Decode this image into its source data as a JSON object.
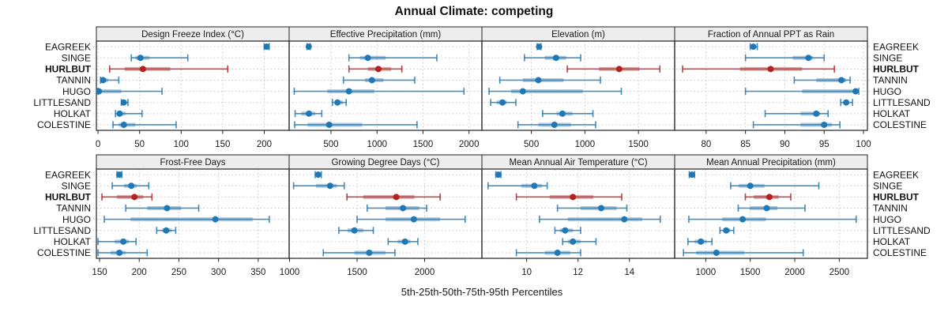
{
  "title": "Annual Climate: competing",
  "caption": "5th-25th-50th-75th-95th Percentiles",
  "colors": {
    "series_blue": "#1f77b4",
    "highlight_red": "#b22222",
    "strip_bg": "#ededed",
    "grid": "#c8c8c8",
    "border": "#222222",
    "text": "#1a1a1a"
  },
  "chart_data": {
    "type": "dotplot-percentile-trellis",
    "percentiles": [
      "5th",
      "25th",
      "50th",
      "75th",
      "95th"
    ],
    "sites": [
      "EAGREEK",
      "SINGE",
      "HURLBUT",
      "TANNIN",
      "HUGO",
      "LITTLESAND",
      "HOLKAT",
      "COLESTINE"
    ],
    "highlight_site": "HURLBUT",
    "layout_rows": 2,
    "layout_cols": 4,
    "grid": "dotted",
    "panels": [
      {
        "id": "design-freeze-index",
        "title": "Design Freeze Index (°C)",
        "xlim": [
          -2,
          230
        ],
        "ticks": [
          0,
          50,
          100,
          150,
          200
        ],
        "values": {
          "EAGREEK": [
            200,
            202,
            203,
            204,
            206
          ],
          "SINGE": [
            40,
            45,
            51,
            62,
            108
          ],
          "HURLBUT": [
            14,
            32,
            54,
            87,
            156
          ],
          "TANNIN": [
            3,
            4,
            6,
            12,
            25
          ],
          "HUGO": [
            0,
            0,
            1,
            28,
            77
          ],
          "LITTLESAND": [
            28,
            30,
            31,
            33,
            36
          ],
          "HOLKAT": [
            21,
            23,
            26,
            33,
            53
          ],
          "COLESTINE": [
            18,
            25,
            31,
            45,
            94
          ]
        }
      },
      {
        "id": "effective-precipitation",
        "title": "Effective Precipitation (mm)",
        "xlim": [
          45,
          2140
        ],
        "ticks": [
          500,
          1000,
          1500,
          2000
        ],
        "values": {
          "EAGREEK": [
            240,
            252,
            258,
            265,
            275
          ],
          "SINGE": [
            695,
            815,
            900,
            1095,
            1650
          ],
          "HURLBUT": [
            695,
            900,
            1015,
            1155,
            1270
          ],
          "TANNIN": [
            635,
            870,
            945,
            1070,
            1410
          ],
          "HUGO": [
            100,
            460,
            695,
            970,
            1945
          ],
          "LITTLESAND": [
            515,
            545,
            570,
            630,
            665
          ],
          "HOLKAT": [
            110,
            175,
            260,
            330,
            400
          ],
          "COLESTINE": [
            105,
            245,
            480,
            840,
            1435
          ]
        }
      },
      {
        "id": "elevation",
        "title": "Elevation (m)",
        "xlim": [
          38,
          1838
        ],
        "ticks": [
          500,
          1000,
          1500
        ],
        "values": {
          "EAGREEK": [
            555,
            565,
            572,
            580,
            590
          ],
          "SINGE": [
            435,
            625,
            730,
            825,
            960
          ],
          "HURLBUT": [
            835,
            1130,
            1320,
            1510,
            1700
          ],
          "TANNIN": [
            205,
            420,
            565,
            800,
            1145
          ],
          "HUGO": [
            105,
            310,
            420,
            980,
            1340
          ],
          "LITTLESAND": [
            120,
            175,
            230,
            270,
            355
          ],
          "HOLKAT": [
            605,
            735,
            790,
            885,
            1075
          ],
          "COLESTINE": [
            375,
            565,
            715,
            870,
            1100
          ]
        }
      },
      {
        "id": "fraction-ppt-as-rain",
        "title": "Fraction of Annual PPT as Rain",
        "xlim": [
          76,
          100.5
        ],
        "ticks": [
          80,
          85,
          90,
          95,
          100
        ],
        "values": {
          "EAGREEK": [
            85.6,
            85.8,
            86,
            86.2,
            86.5
          ],
          "SINGE": [
            85,
            91,
            93,
            93.6,
            95
          ],
          "HURLBUT": [
            77,
            84.3,
            88.2,
            92.2,
            96.3
          ],
          "TANNIN": [
            91.2,
            94,
            97.2,
            97.8,
            98.3
          ],
          "HUGO": [
            85,
            92.2,
            99,
            99.2,
            99.4
          ],
          "LITTLESAND": [
            97.1,
            97.5,
            97.8,
            98.1,
            98.6
          ],
          "HOLKAT": [
            87.5,
            92,
            94,
            94.5,
            95.5
          ],
          "COLESTINE": [
            86,
            92,
            95,
            96,
            97
          ]
        }
      },
      {
        "id": "frost-free-days",
        "title": "Frost-Free Days",
        "xlim": [
          146,
          389
        ],
        "ticks": [
          150,
          200,
          250,
          300,
          350
        ],
        "values": {
          "EAGREEK": [
            172,
            174,
            175,
            176,
            178
          ],
          "SINGE": [
            166,
            181,
            190,
            197,
            212
          ],
          "HURLBUT": [
            153,
            172,
            194,
            205,
            216
          ],
          "TANNIN": [
            183,
            210,
            235,
            253,
            275
          ],
          "HUGO": [
            156,
            189,
            296,
            343,
            364
          ],
          "LITTLESAND": [
            222,
            229,
            234,
            241,
            246
          ],
          "HOLKAT": [
            148,
            169,
            180,
            187,
            196
          ],
          "COLESTINE": [
            148,
            164,
            175,
            183,
            210
          ]
        }
      },
      {
        "id": "growing-degree-days",
        "title": "Growing Degree Days (°C)",
        "xlim": [
          997,
          2424
        ],
        "ticks": [
          1000,
          1500,
          2000
        ],
        "values": {
          "EAGREEK": [
            1190,
            1202,
            1212,
            1222,
            1235
          ],
          "SINGE": [
            1030,
            1195,
            1300,
            1350,
            1405
          ],
          "HURLBUT": [
            1425,
            1545,
            1790,
            1925,
            2115
          ],
          "TANNIN": [
            1575,
            1710,
            1840,
            1960,
            2015
          ],
          "HUGO": [
            1500,
            1710,
            1920,
            2115,
            2300
          ],
          "LITTLESAND": [
            1365,
            1430,
            1480,
            1545,
            1620
          ],
          "HOLKAT": [
            1730,
            1800,
            1855,
            1895,
            1950
          ],
          "COLESTINE": [
            1250,
            1480,
            1590,
            1710,
            1780
          ]
        }
      },
      {
        "id": "mean-annual-air-temperature",
        "title": "Mean Annual Air Temperature (°C)",
        "xlim": [
          8.26,
          15.76
        ],
        "ticks": [
          10,
          12,
          14
        ],
        "values": {
          "EAGREEK": [
            8.8,
            8.85,
            8.9,
            8.95,
            9.0
          ],
          "SINGE": [
            8.5,
            9.8,
            10.3,
            10.6,
            10.8
          ],
          "HURLBUT": [
            9.6,
            10.9,
            11.8,
            12.6,
            13.7
          ],
          "TANNIN": [
            11.2,
            12.1,
            12.9,
            13.5,
            13.9
          ],
          "HUGO": [
            10.5,
            11.6,
            13.8,
            14.5,
            15.2
          ],
          "LITTLESAND": [
            11.1,
            11.3,
            11.5,
            11.8,
            12.1
          ],
          "HOLKAT": [
            11.4,
            11.6,
            11.8,
            12.1,
            12.7
          ],
          "COLESTINE": [
            9.6,
            10.7,
            11.2,
            11.7,
            12.1
          ]
        }
      },
      {
        "id": "mean-annual-precipitation",
        "title": "Mean Annual Precipitation (mm)",
        "xlim": [
          651,
          2816
        ],
        "ticks": [
          1000,
          1500,
          2000,
          2500
        ],
        "values": {
          "EAGREEK": [
            815,
            830,
            845,
            860,
            875
          ],
          "SINGE": [
            1280,
            1370,
            1500,
            1660,
            2270
          ],
          "HURLBUT": [
            1445,
            1540,
            1715,
            1820,
            1955
          ],
          "TANNIN": [
            1365,
            1495,
            1685,
            1805,
            2115
          ],
          "HUGO": [
            810,
            1185,
            1415,
            1675,
            2690
          ],
          "LITTLESAND": [
            1160,
            1195,
            1230,
            1275,
            1315
          ],
          "HOLKAT": [
            800,
            875,
            945,
            1010,
            1070
          ],
          "COLESTINE": [
            750,
            890,
            1120,
            1435,
            2095
          ]
        }
      }
    ]
  }
}
